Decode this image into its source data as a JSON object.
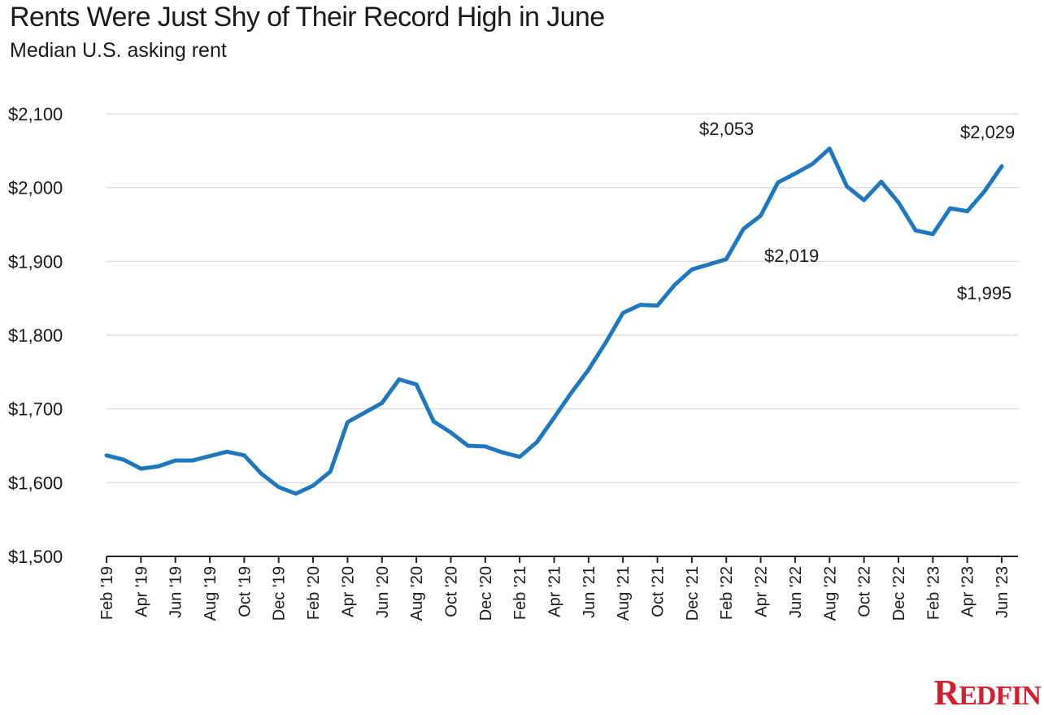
{
  "header": {
    "title": "Rents Were Just Shy of Their Record High in June",
    "subtitle": "Median U.S. asking rent"
  },
  "brand": {
    "first": "R",
    "rest": "EDFIN"
  },
  "colors": {
    "line": "#1f77c0",
    "grid": "#dcdcdc",
    "axis": "#222222",
    "brand": "#d3202f"
  },
  "chart_data": {
    "type": "line",
    "title": "Rents Were Just Shy of Their Record High in June",
    "subtitle": "Median U.S. asking rent",
    "ylim": [
      1500,
      2100
    ],
    "yticks": [
      1500,
      1600,
      1700,
      1800,
      1900,
      2000,
      2100
    ],
    "ytick_labels": [
      "$1,500",
      "$1,600",
      "$1,700",
      "$1,800",
      "$1,900",
      "$2,000",
      "$2,100"
    ],
    "grid": true,
    "x": [
      "Feb '19",
      "Mar '19",
      "Apr '19",
      "May '19",
      "Jun '19",
      "Jul '19",
      "Aug '19",
      "Sep '19",
      "Oct '19",
      "Nov '19",
      "Dec '19",
      "Jan '20",
      "Feb '20",
      "Mar '20",
      "Apr '20",
      "May '20",
      "Jun '20",
      "Jul '20",
      "Aug '20",
      "Sep '20",
      "Oct '20",
      "Nov '20",
      "Dec '20",
      "Jan '21",
      "Feb '21",
      "Mar '21",
      "Apr '21",
      "May '21",
      "Jun '21",
      "Jul '21",
      "Aug '21",
      "Sep '21",
      "Oct '21",
      "Nov '21",
      "Dec '21",
      "Jan '22",
      "Feb '22",
      "Mar '22",
      "Apr '22",
      "May '22",
      "Jun '22",
      "Jul '22",
      "Aug '22",
      "Sep '22",
      "Oct '22",
      "Nov '22",
      "Dec '22",
      "Jan '23",
      "Feb '23",
      "Mar '23",
      "Apr '23",
      "May '23",
      "Jun '23"
    ],
    "xtick_labels": [
      "Feb '19",
      "Apr '19",
      "Jun '19",
      "Aug '19",
      "Oct '19",
      "Dec '19",
      "Feb '20",
      "Apr '20",
      "Jun '20",
      "Aug '20",
      "Oct '20",
      "Dec '20",
      "Feb '21",
      "Apr '21",
      "Jun '21",
      "Aug '21",
      "Oct '21",
      "Dec '21",
      "Feb '22",
      "Apr '22",
      "Jun '22",
      "Aug '22",
      "Oct '22",
      "Dec '22",
      "Feb '23",
      "Apr '23",
      "Jun '23"
    ],
    "series": [
      {
        "values": [
          1637,
          1631,
          1619,
          1622,
          1630,
          1630,
          1636,
          1642,
          1637,
          1612,
          1594,
          1585,
          1596,
          1615,
          1682,
          1695,
          1708,
          1740,
          1733,
          1683,
          1668,
          1650,
          1649,
          1641,
          1635,
          1655,
          1688,
          1722,
          1753,
          1790,
          1830,
          1841,
          1840,
          1868,
          1889,
          1896,
          1903,
          1944,
          1962,
          2007,
          2019,
          2032,
          2053,
          2002,
          1983,
          2008,
          1980,
          1942,
          1937,
          1972,
          1968,
          1995,
          2029
        ]
      }
    ],
    "annotations": [
      {
        "text": "$2,053",
        "x": "Aug '22",
        "y": 2053
      },
      {
        "text": "$2,019",
        "x": "Jun '22",
        "y": 2019
      },
      {
        "text": "$2,029",
        "x": "Jun '23",
        "y": 2029
      },
      {
        "text": "$1,995",
        "x": "May '23",
        "y": 1995
      }
    ]
  }
}
